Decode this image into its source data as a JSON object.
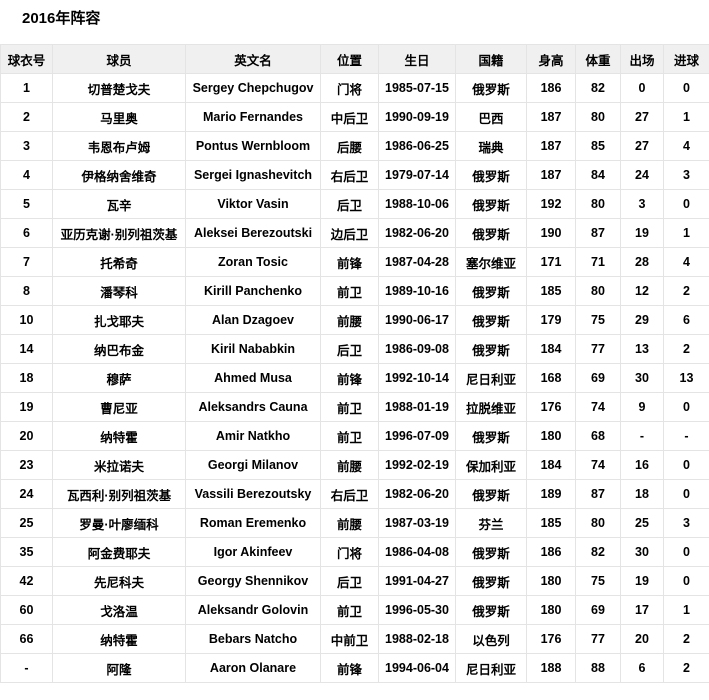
{
  "title": "2016年阵容",
  "table": {
    "headers": [
      "球衣号",
      "球员",
      "英文名",
      "位置",
      "生日",
      "国籍",
      "身高",
      "体重",
      "出场",
      "进球"
    ],
    "rows": [
      [
        "1",
        "切普楚戈夫",
        "Sergey Chepchugov",
        "门将",
        "1985-07-15",
        "俄罗斯",
        "186",
        "82",
        "0",
        "0"
      ],
      [
        "2",
        "马里奥",
        "Mario Fernandes",
        "中后卫",
        "1990-09-19",
        "巴西",
        "187",
        "80",
        "27",
        "1"
      ],
      [
        "3",
        "韦恩布卢姆",
        "Pontus Wernbloom",
        "后腰",
        "1986-06-25",
        "瑞典",
        "187",
        "85",
        "27",
        "4"
      ],
      [
        "4",
        "伊格纳舍维奇",
        "Sergei Ignashevitch",
        "右后卫",
        "1979-07-14",
        "俄罗斯",
        "187",
        "84",
        "24",
        "3"
      ],
      [
        "5",
        "瓦辛",
        "Viktor Vasin",
        "后卫",
        "1988-10-06",
        "俄罗斯",
        "192",
        "80",
        "3",
        "0"
      ],
      [
        "6",
        "亚历克谢·别列祖茨基",
        "Aleksei Berezoutski",
        "边后卫",
        "1982-06-20",
        "俄罗斯",
        "190",
        "87",
        "19",
        "1"
      ],
      [
        "7",
        "托希奇",
        "Zoran Tosic",
        "前锋",
        "1987-04-28",
        "塞尔维亚",
        "171",
        "71",
        "28",
        "4"
      ],
      [
        "8",
        "潘琴科",
        "Kirill Panchenko",
        "前卫",
        "1989-10-16",
        "俄罗斯",
        "185",
        "80",
        "12",
        "2"
      ],
      [
        "10",
        "扎戈耶夫",
        "Alan Dzagoev",
        "前腰",
        "1990-06-17",
        "俄罗斯",
        "179",
        "75",
        "29",
        "6"
      ],
      [
        "14",
        "纳巴布金",
        "Kiril Nababkin",
        "后卫",
        "1986-09-08",
        "俄罗斯",
        "184",
        "77",
        "13",
        "2"
      ],
      [
        "18",
        "穆萨",
        "Ahmed Musa",
        "前锋",
        "1992-10-14",
        "尼日利亚",
        "168",
        "69",
        "30",
        "13"
      ],
      [
        "19",
        "曹尼亚",
        "Aleksandrs Cauna",
        "前卫",
        "1988-01-19",
        "拉脱维亚",
        "176",
        "74",
        "9",
        "0"
      ],
      [
        "20",
        "纳特霍",
        "Amir Natkho",
        "前卫",
        "1996-07-09",
        "俄罗斯",
        "180",
        "68",
        "-",
        "-"
      ],
      [
        "23",
        "米拉诺夫",
        "Georgi Milanov",
        "前腰",
        "1992-02-19",
        "保加利亚",
        "184",
        "74",
        "16",
        "0"
      ],
      [
        "24",
        "瓦西利·别列祖茨基",
        "Vassili Berezoutsky",
        "右后卫",
        "1982-06-20",
        "俄罗斯",
        "189",
        "87",
        "18",
        "0"
      ],
      [
        "25",
        "罗曼·叶廖缅科",
        "Roman Eremenko",
        "前腰",
        "1987-03-19",
        "芬兰",
        "185",
        "80",
        "25",
        "3"
      ],
      [
        "35",
        "阿金费耶夫",
        "Igor Akinfeev",
        "门将",
        "1986-04-08",
        "俄罗斯",
        "186",
        "82",
        "30",
        "0"
      ],
      [
        "42",
        "先尼科夫",
        "Georgy Shennikov",
        "后卫",
        "1991-04-27",
        "俄罗斯",
        "180",
        "75",
        "19",
        "0"
      ],
      [
        "60",
        "戈洛温",
        "Aleksandr Golovin",
        "前卫",
        "1996-05-30",
        "俄罗斯",
        "180",
        "69",
        "17",
        "1"
      ],
      [
        "66",
        "纳特霍",
        "Bebars Natcho",
        "中前卫",
        "1988-02-18",
        "以色列",
        "176",
        "77",
        "20",
        "2"
      ],
      [
        "-",
        "阿隆",
        "Aaron Olanare",
        "前锋",
        "1994-06-04",
        "尼日利亚",
        "188",
        "88",
        "6",
        "2"
      ]
    ]
  },
  "colors": {
    "header_background": "#f0f0f0",
    "row_background": "#ffffff",
    "border": "#e4e4e4",
    "text": "#000000"
  }
}
